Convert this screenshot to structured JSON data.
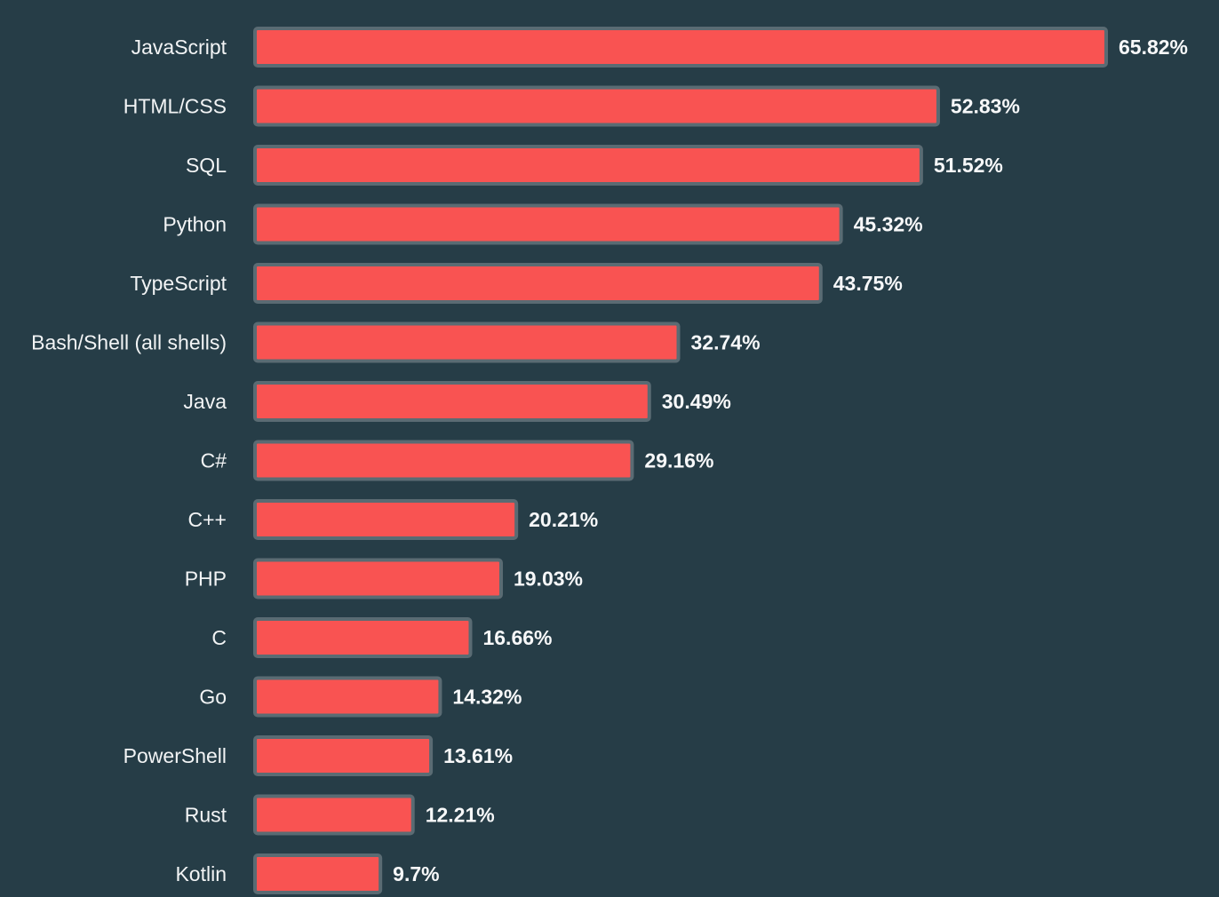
{
  "chart_data": {
    "type": "bar",
    "orientation": "horizontal",
    "title": "",
    "xlabel": "",
    "ylabel": "",
    "grid": false,
    "legend": "none",
    "unit": "%",
    "categories": [
      "JavaScript",
      "HTML/CSS",
      "SQL",
      "Python",
      "TypeScript",
      "Bash/Shell (all shells)",
      "Java",
      "C#",
      "C++",
      "PHP",
      "C",
      "Go",
      "PowerShell",
      "Rust",
      "Kotlin"
    ],
    "values": [
      65.82,
      52.83,
      51.52,
      45.32,
      43.75,
      32.74,
      30.49,
      29.16,
      20.21,
      19.03,
      16.66,
      14.32,
      13.61,
      12.21,
      9.7
    ],
    "value_labels": [
      "65.82%",
      "52.83%",
      "51.52%",
      "45.32%",
      "43.75%",
      "32.74%",
      "30.49%",
      "29.16%",
      "20.21%",
      "19.03%",
      "16.66%",
      "14.32%",
      "13.61%",
      "12.21%",
      "9.7%"
    ],
    "xlim": [
      0,
      65.82
    ]
  },
  "colors": {
    "background": "#263d47",
    "bar_fill": "#f95352",
    "bar_stroke": "#5a6b73",
    "category_text": "#f2f4f5",
    "value_text": "#f7f8f9"
  }
}
